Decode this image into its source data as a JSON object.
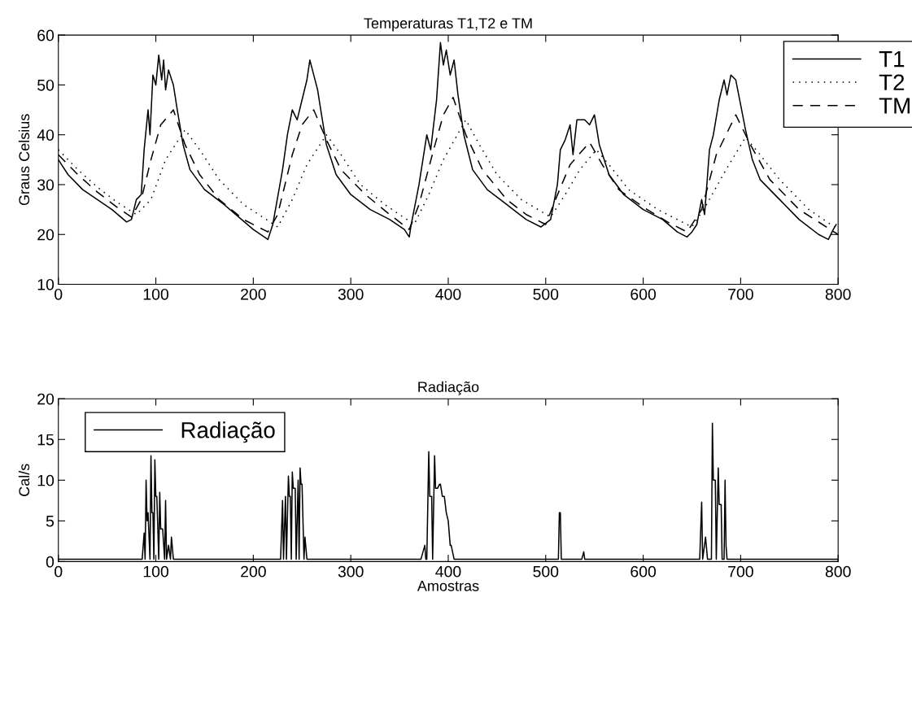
{
  "chart_data": [
    {
      "type": "line",
      "title": "Temperaturas T1,T2 e TM",
      "ylabel": "Graus Celsius",
      "xlim": [
        0,
        800
      ],
      "ylim": [
        10,
        60
      ],
      "xticks": [
        0,
        100,
        200,
        300,
        400,
        500,
        600,
        700,
        800
      ],
      "yticks": [
        10,
        20,
        30,
        40,
        50,
        60
      ],
      "grid": false,
      "legend": "top right",
      "series": [
        {
          "name": "T1",
          "color": "#000000",
          "line_style": "solid",
          "x": [
            0,
            10,
            25,
            40,
            55,
            70,
            75,
            80,
            85,
            88,
            92,
            94,
            97,
            100,
            103,
            106,
            108,
            110,
            113,
            118,
            122,
            128,
            135,
            150,
            170,
            200,
            215,
            220,
            230,
            235,
            240,
            245,
            250,
            255,
            258,
            262,
            266,
            270,
            275,
            285,
            300,
            320,
            340,
            355,
            360,
            362,
            370,
            378,
            382,
            388,
            392,
            395,
            398,
            402,
            406,
            410,
            416,
            425,
            440,
            460,
            480,
            495,
            505,
            512,
            515,
            520,
            525,
            528,
            532,
            540,
            545,
            550,
            555,
            565,
            580,
            600,
            620,
            635,
            645,
            650,
            655,
            660,
            663,
            668,
            672,
            678,
            683,
            686,
            690,
            695,
            700,
            705,
            712,
            720,
            740,
            760,
            780,
            790,
            795,
            798
          ],
          "values": [
            35,
            32,
            29,
            27,
            25,
            22.5,
            23,
            27,
            28,
            37,
            45,
            40,
            52,
            50,
            56,
            51,
            55,
            49,
            53,
            50,
            45,
            38,
            33,
            29,
            26,
            21,
            19,
            22,
            33,
            40,
            45,
            43,
            47,
            51,
            55,
            52,
            49,
            44,
            38,
            32,
            28,
            25,
            23,
            21,
            19.5,
            22,
            30,
            40,
            37,
            47,
            58.5,
            54,
            57,
            52,
            55,
            48,
            40,
            33,
            29,
            26,
            23,
            21.5,
            23,
            30,
            37,
            39,
            42,
            36,
            43,
            43,
            42,
            44,
            38,
            32,
            28,
            25,
            23,
            20.5,
            19.5,
            20.5,
            22,
            27,
            24,
            37,
            40,
            47,
            51,
            48,
            52,
            51,
            46,
            41,
            35,
            31,
            27,
            23,
            20,
            19,
            21,
            22
          ]
        },
        {
          "name": "T2",
          "color": "#000000",
          "line_style": "dotted",
          "x": [
            0,
            20,
            40,
            60,
            80,
            95,
            110,
            130,
            145,
            165,
            190,
            225,
            240,
            255,
            275,
            290,
            310,
            335,
            365,
            380,
            395,
            418,
            432,
            450,
            475,
            505,
            520,
            535,
            552,
            565,
            585,
            615,
            650,
            665,
            685,
            705,
            720,
            740,
            770,
            800
          ],
          "values": [
            37,
            33,
            29.5,
            26.5,
            24,
            27,
            35,
            41,
            37,
            31,
            26,
            21.5,
            27,
            34,
            40,
            36,
            30,
            26,
            22,
            28,
            35,
            43,
            38,
            32,
            27,
            23.5,
            28,
            33,
            37,
            34,
            29,
            25,
            21.5,
            26,
            33,
            39.5,
            36,
            31,
            25,
            21
          ]
        },
        {
          "name": "TM",
          "color": "#000000",
          "line_style": "dashed",
          "x": [
            0,
            20,
            40,
            60,
            75,
            85,
            95,
            105,
            118,
            130,
            145,
            165,
            190,
            215,
            225,
            240,
            250,
            262,
            275,
            290,
            315,
            340,
            360,
            370,
            385,
            395,
            405,
            418,
            435,
            460,
            480,
            500,
            510,
            525,
            545,
            558,
            575,
            600,
            625,
            645,
            660,
            675,
            695,
            710,
            730,
            760,
            800
          ],
          "values": [
            36,
            32,
            28.5,
            25.5,
            23.5,
            27,
            35,
            42,
            45,
            38,
            32,
            27,
            23,
            20.5,
            24,
            36,
            42,
            45,
            39,
            33,
            28,
            24,
            21,
            26,
            37,
            44,
            47.5,
            40,
            33,
            27,
            24,
            22,
            27,
            34,
            38.5,
            34,
            29,
            25.5,
            22.5,
            20.5,
            25,
            36,
            44,
            38,
            31,
            25,
            20
          ]
        }
      ]
    },
    {
      "type": "line",
      "title": "Radiação",
      "xlabel": "Amostras",
      "ylabel": "Cal/s",
      "xlim": [
        0,
        800
      ],
      "ylim": [
        0,
        20
      ],
      "xticks": [
        0,
        100,
        200,
        300,
        400,
        500,
        600,
        700,
        800
      ],
      "yticks": [
        0,
        5,
        10,
        15,
        20
      ],
      "grid": false,
      "legend": "top left",
      "series": [
        {
          "name": "Radiação",
          "color": "#000000",
          "line_style": "solid",
          "x": [
            0,
            86,
            88,
            89,
            90,
            91,
            92,
            94,
            95,
            96,
            97,
            98,
            99,
            100,
            101,
            103,
            104,
            105,
            107,
            109,
            110,
            111,
            113,
            115,
            116,
            118,
            119,
            228,
            230,
            231,
            233,
            234,
            236,
            237,
            238,
            239,
            240,
            241,
            243,
            244,
            246,
            247,
            248,
            249,
            250,
            252,
            253,
            255,
            256,
            372,
            376,
            377,
            378,
            380,
            381,
            383,
            384,
            386,
            387,
            389,
            391,
            392,
            394,
            396,
            398,
            400,
            402,
            403,
            406,
            513,
            514,
            515,
            516,
            517,
            537,
            539,
            540,
            541,
            658,
            660,
            661,
            664,
            666,
            667,
            670,
            671,
            672,
            674,
            675,
            677,
            678,
            680,
            681,
            683,
            684,
            685,
            686,
            688,
            690,
            800
          ],
          "values": [
            0.3,
            0.3,
            3.5,
            0.3,
            10,
            5,
            6,
            0.3,
            13,
            6,
            6,
            0.3,
            12.5,
            8,
            8,
            0.3,
            8.5,
            4,
            4,
            0.3,
            7.5,
            0.3,
            2,
            0.3,
            3,
            0.3,
            0.3,
            0.3,
            7.5,
            0.3,
            8,
            0.3,
            10.5,
            8,
            8,
            0.3,
            11,
            9,
            9,
            0.3,
            10,
            0.3,
            11.5,
            9.5,
            9.5,
            0.3,
            3,
            0.3,
            0.3,
            0.3,
            2,
            0.3,
            0.3,
            13.5,
            8,
            8,
            0.3,
            13,
            9,
            9,
            9.5,
            9.5,
            8,
            8,
            6,
            5,
            2,
            2,
            0.3,
            0.3,
            6,
            6,
            0.3,
            0.3,
            0.3,
            1.2,
            0.3,
            0.3,
            0.3,
            7.3,
            0.3,
            3,
            0.3,
            0.3,
            0.3,
            17,
            10,
            10,
            0.3,
            11.5,
            7,
            7,
            0.3,
            0.3,
            10,
            2,
            0.3,
            0.3,
            0.3,
            0.3
          ]
        }
      ]
    }
  ]
}
